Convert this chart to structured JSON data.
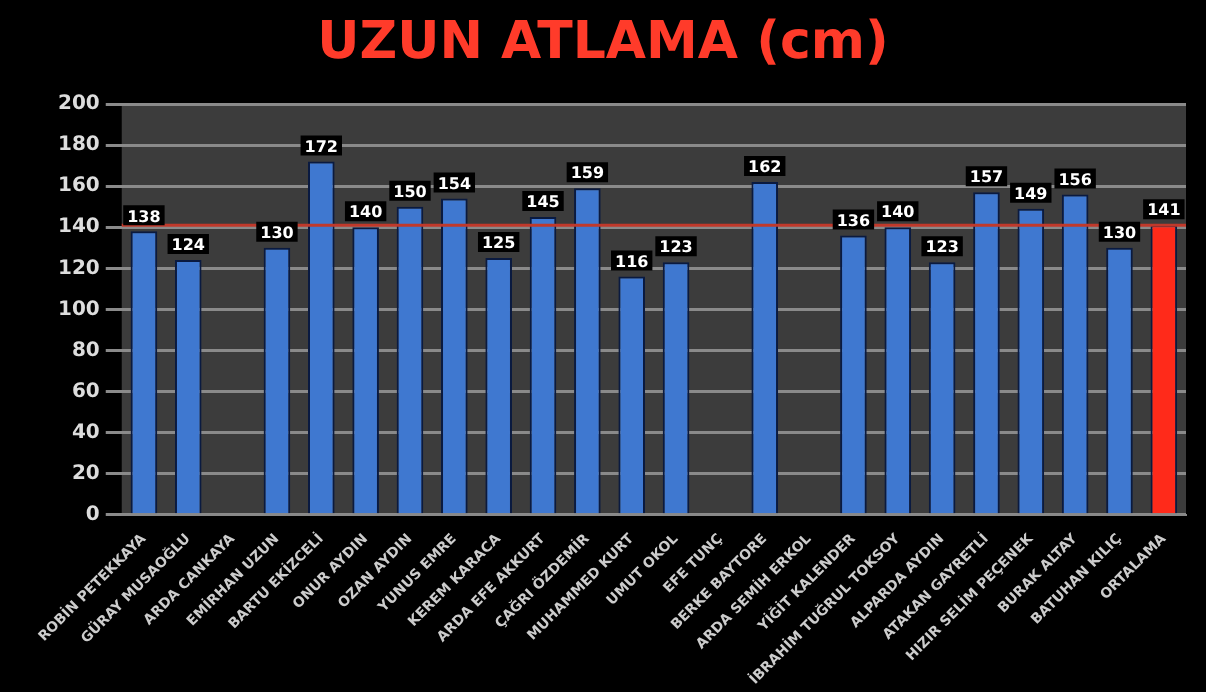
{
  "chart_data": {
    "type": "bar",
    "title": "UZUN ATLAMA (cm)",
    "categories": [
      "ROBİN PETEKKAYA",
      "GÜRAY MUSAOĞLU",
      "ARDA CANKAYA",
      "EMİRHAN UZUN",
      "BARTU EKİZCELİ",
      "ONUR AYDIN",
      "OZAN AYDIN",
      "YUNUS EMRE",
      "KEREM KARACA",
      "ARDA EFE AKKURT",
      "ÇAĞRI ÖZDEMİR",
      "MUHAMMED KURT",
      "UMUT OKOL",
      "EFE TUNÇ",
      "BERKE BAYTORE",
      "ARDA SEMİH ERKOL",
      "YİĞİT KALENDER",
      "İBRAHİM TUĞRUL TOKSOY",
      "ALPARDA AYDIN",
      "ATAKAN GAYRETLİ",
      "HIZIR SELİM PEÇENEK",
      "BURAK ALTAY",
      "BATUHAN KILIÇ",
      "ORTALAMA"
    ],
    "values": [
      138,
      124,
      null,
      130,
      172,
      140,
      150,
      154,
      125,
      145,
      159,
      116,
      123,
      null,
      162,
      null,
      136,
      140,
      123,
      157,
      149,
      156,
      130,
      141
    ],
    "colors": [
      "#3f78d0",
      "#3f78d0",
      "#3f78d0",
      "#3f78d0",
      "#3f78d0",
      "#3f78d0",
      "#3f78d0",
      "#3f78d0",
      "#3f78d0",
      "#3f78d0",
      "#3f78d0",
      "#3f78d0",
      "#3f78d0",
      "#3f78d0",
      "#3f78d0",
      "#3f78d0",
      "#3f78d0",
      "#3f78d0",
      "#3f78d0",
      "#3f78d0",
      "#3f78d0",
      "#3f78d0",
      "#3f78d0",
      "#ff2a1a"
    ],
    "ylim": [
      0,
      200
    ],
    "yticks": [
      0,
      20,
      40,
      60,
      80,
      100,
      120,
      140,
      160,
      180,
      200
    ],
    "grid": "y",
    "legend": false,
    "data_labels": true,
    "ref_lines": [
      {
        "axis": "y",
        "value": 141,
        "color": "#c0392b"
      }
    ]
  }
}
